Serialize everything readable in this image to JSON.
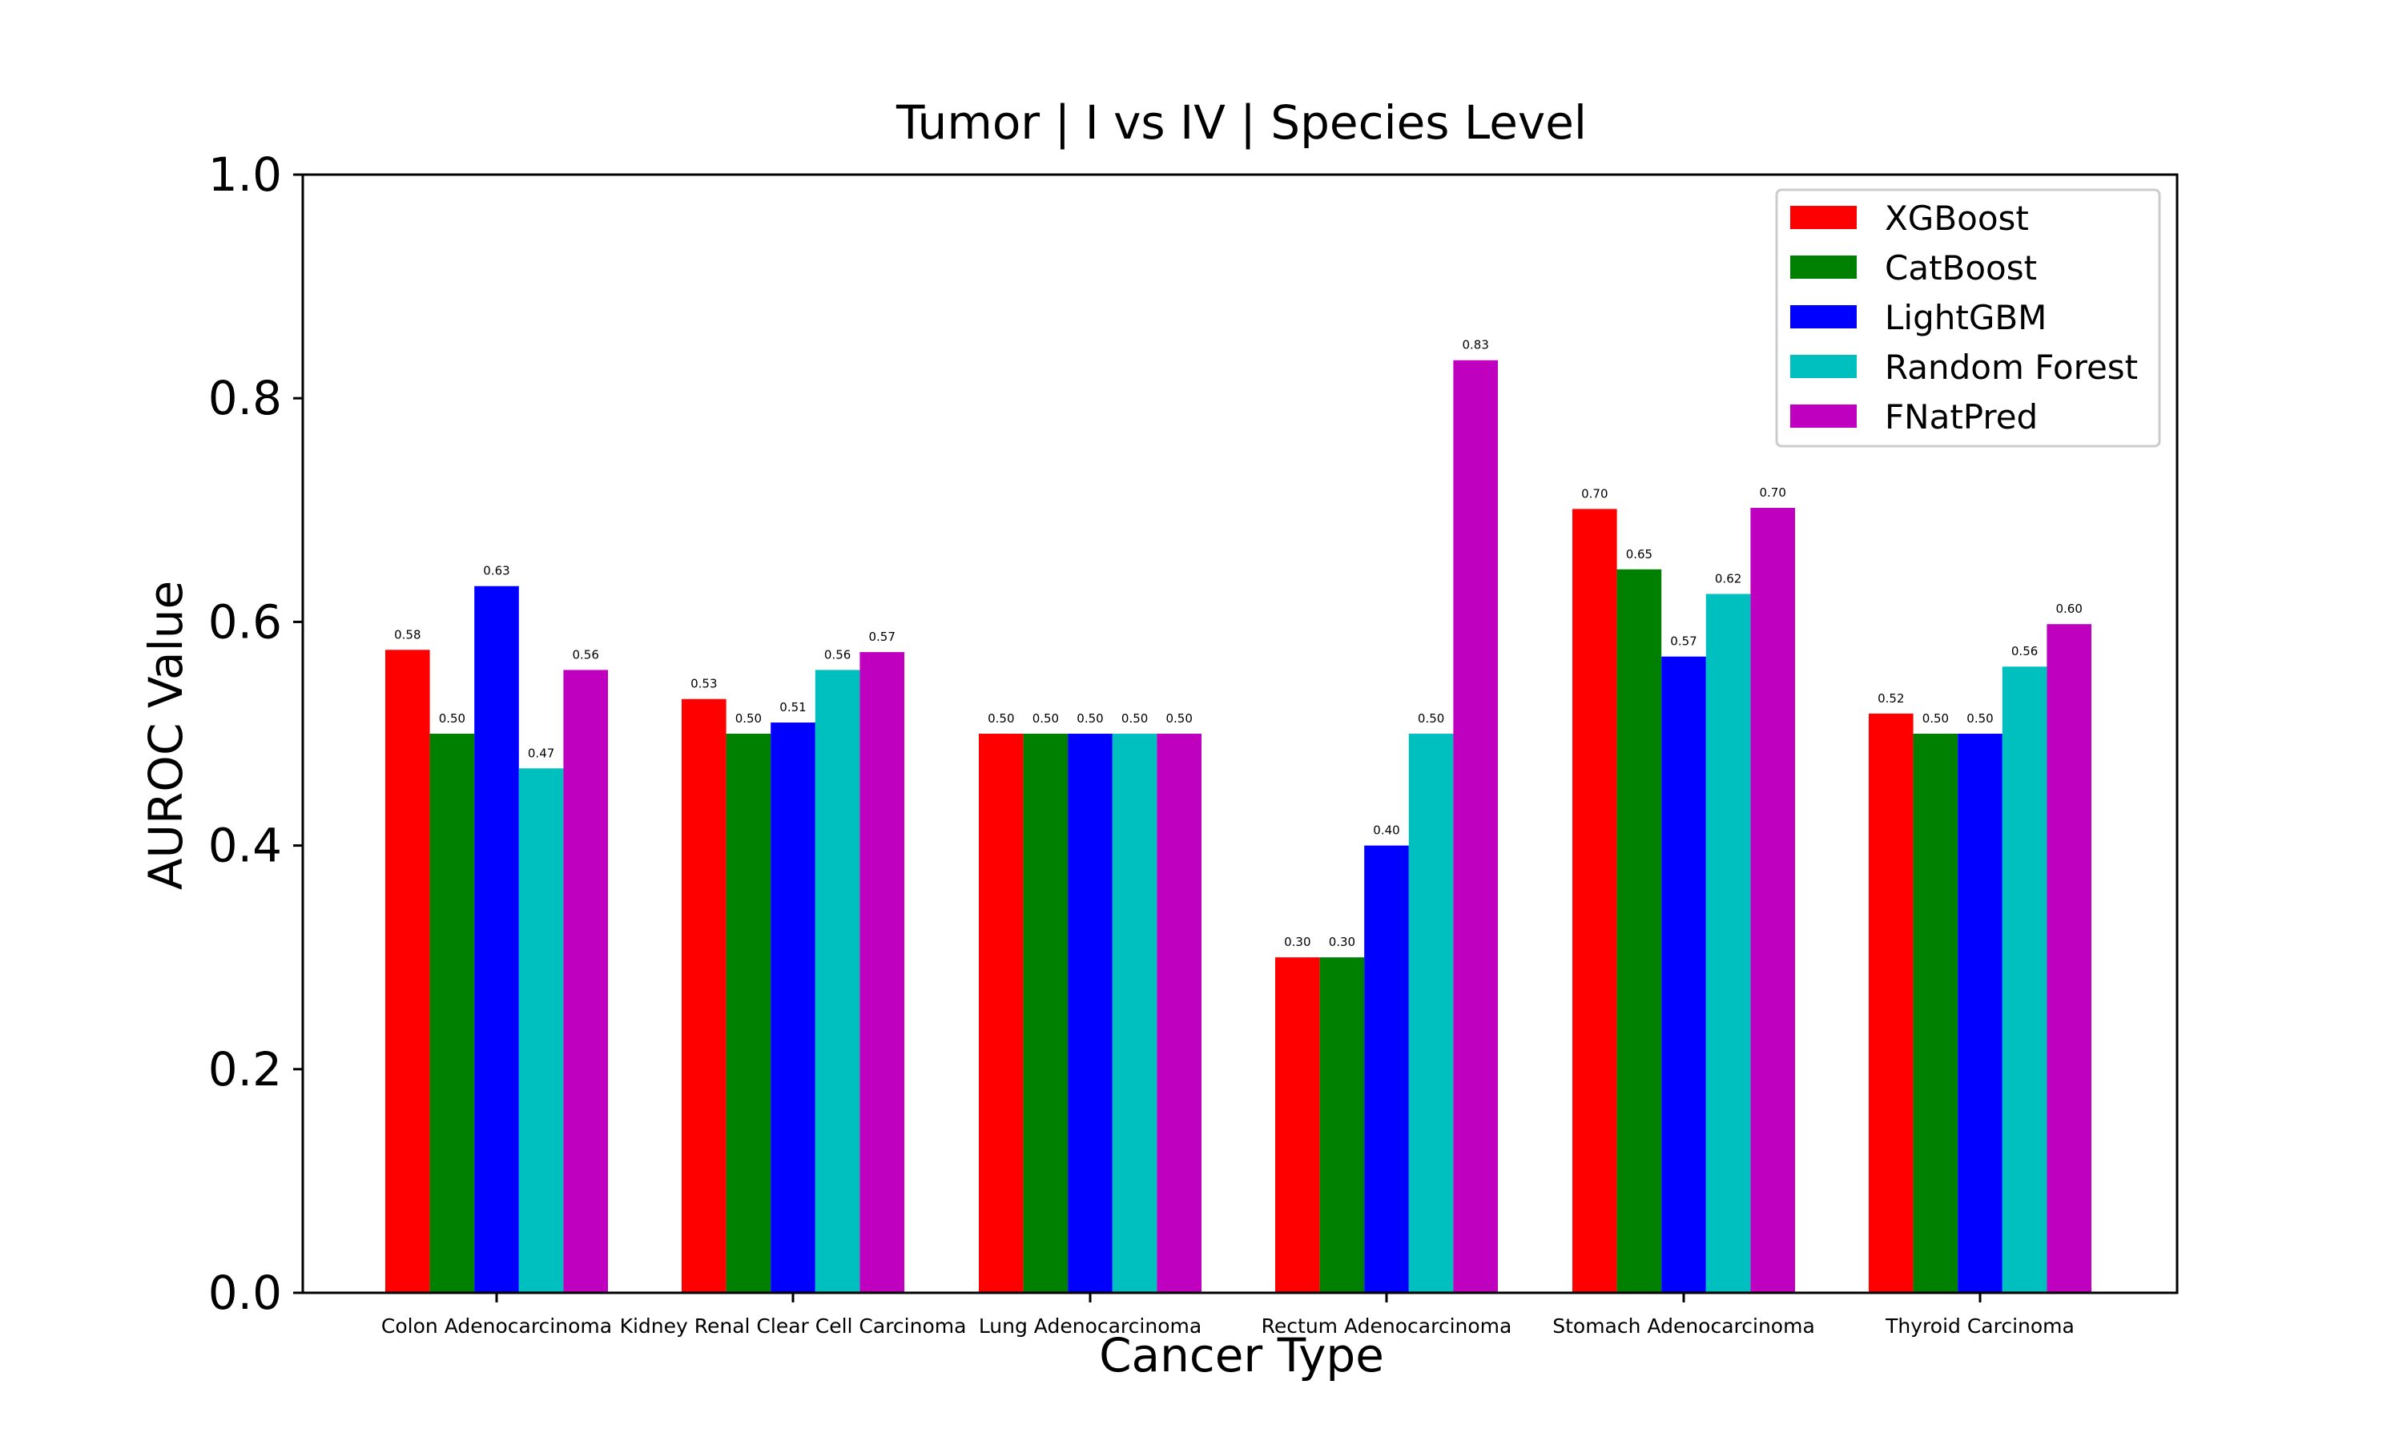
{
  "chart_data": {
    "type": "bar",
    "title": "Tumor | I vs IV | Species Level",
    "xlabel": "Cancer Type",
    "ylabel": "AUROC Value",
    "ylim": [
      0.0,
      1.0
    ],
    "yticks": [
      "0.0",
      "0.2",
      "0.4",
      "0.6",
      "0.8",
      "1.0"
    ],
    "ytick_values": [
      0.0,
      0.2,
      0.4,
      0.6,
      0.8,
      1.0
    ],
    "grid": false,
    "legend_position": "top-right",
    "categories": [
      "Colon Adenocarcinoma",
      "Kidney Renal Clear Cell Carcinoma",
      "Lung Adenocarcinoma",
      "Rectum Adenocarcinoma",
      "Stomach Adenocarcinoma",
      "Thyroid Carcinoma"
    ],
    "series": [
      {
        "name": "XGBoost",
        "color": "#ff0000",
        "values": [
          0.575,
          0.531,
          0.5,
          0.3,
          0.701,
          0.518
        ],
        "labels": [
          "0.58",
          "0.53",
          "0.50",
          "0.30",
          "0.70",
          "0.52"
        ]
      },
      {
        "name": "CatBoost",
        "color": "#008000",
        "values": [
          0.5,
          0.5,
          0.5,
          0.3,
          0.647,
          0.5
        ],
        "labels": [
          "0.50",
          "0.50",
          "0.50",
          "0.30",
          "0.65",
          "0.50"
        ]
      },
      {
        "name": "LightGBM",
        "color": "#0000ff",
        "values": [
          0.632,
          0.51,
          0.5,
          0.4,
          0.569,
          0.5
        ],
        "labels": [
          "0.63",
          "0.51",
          "0.50",
          "0.40",
          "0.57",
          "0.50"
        ]
      },
      {
        "name": "Random Forest",
        "color": "#00bfbf",
        "values": [
          0.469,
          0.557,
          0.5,
          0.5,
          0.625,
          0.56
        ],
        "labels": [
          "0.47",
          "0.56",
          "0.50",
          "0.50",
          "0.62",
          "0.56"
        ]
      },
      {
        "name": "FNatPred",
        "color": "#bf00bf",
        "values": [
          0.557,
          0.573,
          0.5,
          0.834,
          0.702,
          0.598
        ],
        "labels": [
          "0.56",
          "0.57",
          "0.50",
          "0.83",
          "0.70",
          "0.60"
        ]
      }
    ]
  }
}
